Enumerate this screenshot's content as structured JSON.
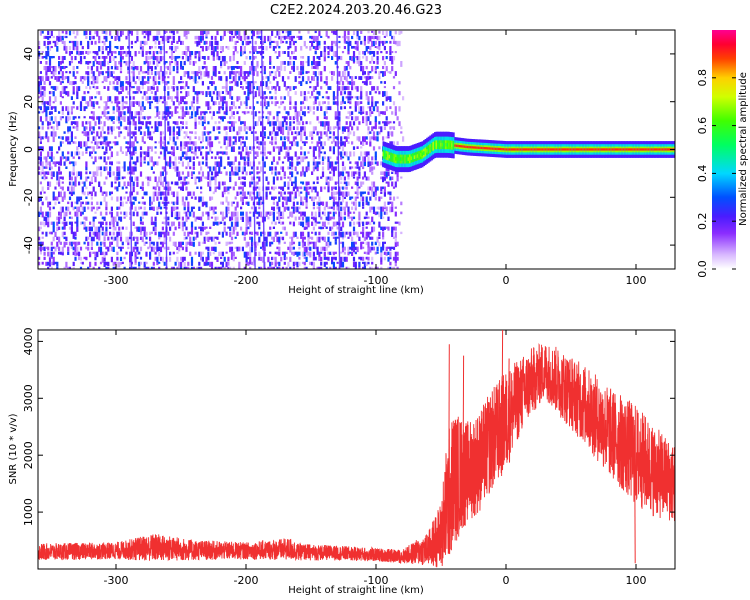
{
  "title": "C2E2.2024.203.20.46.G23",
  "chart_data": [
    {
      "type": "heatmap",
      "title": "C2E2.2024.203.20.46.G23",
      "xlabel": "Height of straight line (km)",
      "ylabel": "Frequency (Hz)",
      "xlim": [
        -360,
        130
      ],
      "ylim": [
        -50,
        50
      ],
      "x_ticks": [
        -300,
        -200,
        -100,
        0,
        100
      ],
      "x_tick_labels": [
        "-300",
        "-200",
        "-100",
        "0",
        "100"
      ],
      "y_ticks": [
        -40,
        -20,
        0,
        20,
        40
      ],
      "y_tick_labels": [
        "-40",
        "-20",
        "0",
        "20",
        "40"
      ],
      "colorbar": {
        "label": "Normalized spectral amplitude",
        "range": [
          0,
          1
        ],
        "ticks": [
          0.0,
          0.2,
          0.4,
          0.6,
          0.8
        ],
        "tick_labels": [
          "0.0",
          "0.2",
          "0.4",
          "0.6",
          "0.8"
        ],
        "colormap": "rainbow (purple-blue-cyan-green-yellow-red-magenta)"
      },
      "features": {
        "noise_region_x": [
          -360,
          -90
        ],
        "noise_amplitude_range": [
          0.0,
          0.3
        ],
        "signal_onset_x": -95,
        "signal_centerline": [
          {
            "x": -95,
            "f": -2
          },
          {
            "x": -85,
            "f": -4
          },
          {
            "x": -75,
            "f": -4
          },
          {
            "x": -65,
            "f": -2
          },
          {
            "x": -55,
            "f": 2
          },
          {
            "x": -45,
            "f": 2
          },
          {
            "x": -30,
            "f": 1
          },
          {
            "x": 0,
            "f": 0
          },
          {
            "x": 60,
            "f": 0
          },
          {
            "x": 90,
            "f": 0
          },
          {
            "x": 130,
            "f": 0
          }
        ],
        "signal_peak_amplitude": 0.9
      },
      "grid": false
    },
    {
      "type": "line",
      "xlabel": "Height of straight line (km)",
      "ylabel": "SNR (10 * v/v)",
      "xlim": [
        -360,
        130
      ],
      "ylim": [
        0,
        4200
      ],
      "x_ticks": [
        -300,
        -200,
        -100,
        0,
        100
      ],
      "x_tick_labels": [
        "-300",
        "-200",
        "-100",
        "0",
        "100"
      ],
      "y_ticks": [
        1000,
        2000,
        3000,
        4000
      ],
      "y_tick_labels": [
        "1000",
        "2000",
        "3000",
        "4000"
      ],
      "color": "#f03030",
      "envelope": {
        "x": [
          -360,
          -300,
          -270,
          -240,
          -200,
          -165,
          -160,
          -130,
          -100,
          -80,
          -60,
          -50,
          -45,
          -40,
          -30,
          -20,
          -10,
          0,
          10,
          20,
          30,
          40,
          60,
          80,
          100,
          115,
          130
        ],
        "mean": [
          300,
          320,
          380,
          330,
          320,
          350,
          300,
          280,
          250,
          220,
          350,
          600,
          1200,
          1600,
          1700,
          1900,
          2300,
          2600,
          3000,
          3300,
          3500,
          3300,
          2900,
          2400,
          2000,
          1700,
          1500
        ],
        "spread": [
          150,
          150,
          250,
          180,
          150,
          200,
          150,
          130,
          120,
          120,
          300,
          600,
          1200,
          1200,
          900,
          900,
          900,
          900,
          700,
          600,
          500,
          600,
          700,
          800,
          900,
          800,
          700
        ]
      },
      "spikes": [
        {
          "x": -44,
          "y": 3950
        },
        {
          "x": -33,
          "y": 3750
        },
        {
          "x": -3,
          "y": 4200
        },
        {
          "x": 2,
          "y": 3700
        },
        {
          "x": 99,
          "y": 100
        }
      ],
      "grid": false
    }
  ]
}
